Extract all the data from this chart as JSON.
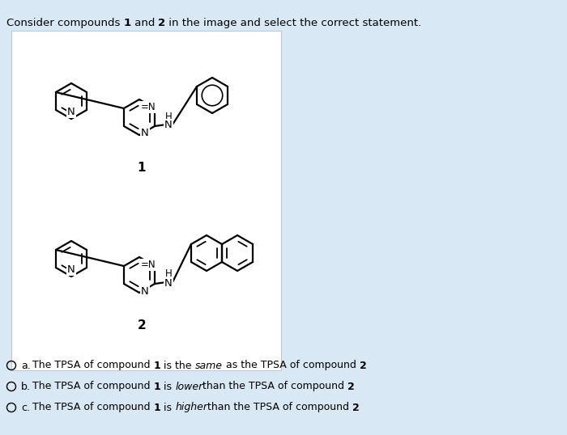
{
  "background_color": "#d8e8f4",
  "panel_bg": "#ffffff",
  "title_fontsize": 9.5,
  "option_fontsize": 9.0,
  "label_fontsize": 11,
  "options": [
    {
      "label": "a.",
      "parts": [
        {
          "text": "The TPSA of compound ",
          "style": "normal"
        },
        {
          "text": "1",
          "style": "bold"
        },
        {
          "text": " is the ",
          "style": "normal"
        },
        {
          "text": "same",
          "style": "italic"
        },
        {
          "text": " as the TPSA of compound ",
          "style": "normal"
        },
        {
          "text": "2",
          "style": "bold"
        }
      ]
    },
    {
      "label": "b.",
      "parts": [
        {
          "text": "The TPSA of compound ",
          "style": "normal"
        },
        {
          "text": "1",
          "style": "bold"
        },
        {
          "text": " is ",
          "style": "normal"
        },
        {
          "text": "lower",
          "style": "italic"
        },
        {
          "text": "than the TPSA of compound ",
          "style": "normal"
        },
        {
          "text": "2",
          "style": "bold"
        }
      ]
    },
    {
      "label": "c.",
      "parts": [
        {
          "text": "The TPSA of compound ",
          "style": "normal"
        },
        {
          "text": "1",
          "style": "bold"
        },
        {
          "text": " is ",
          "style": "normal"
        },
        {
          "text": "higher",
          "style": "italic"
        },
        {
          "text": "than the TPSA of compound ",
          "style": "normal"
        },
        {
          "text": "2",
          "style": "bold"
        }
      ]
    }
  ]
}
